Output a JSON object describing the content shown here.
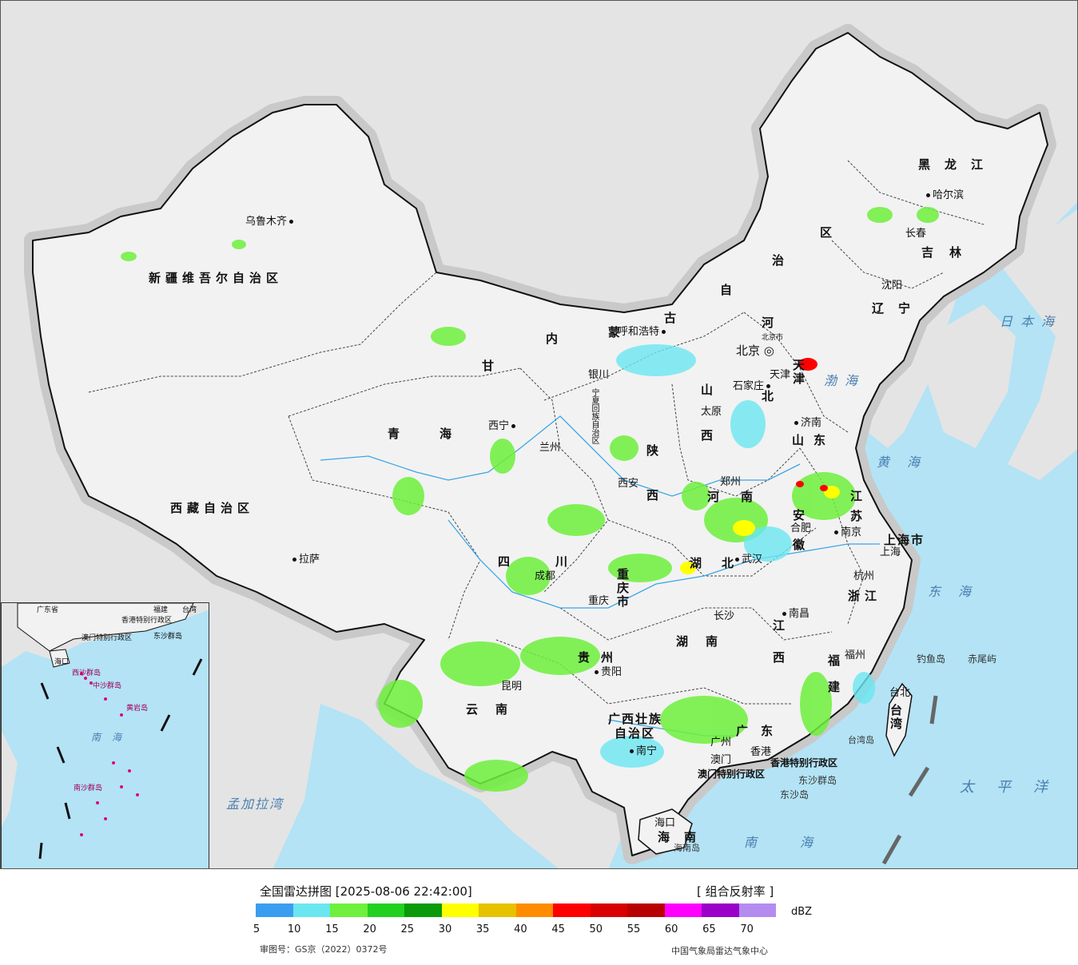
{
  "map": {
    "provinces": [
      {
        "name": "新疆维吾尔自治区"
      },
      {
        "name": "西藏自治区"
      },
      {
        "name": "青海"
      },
      {
        "name": "甘"
      },
      {
        "name": "内"
      },
      {
        "name": "蒙"
      },
      {
        "name": "古"
      },
      {
        "name": "自"
      },
      {
        "name": "治"
      },
      {
        "name": "区"
      },
      {
        "name": "黑龙江"
      },
      {
        "name": "吉林"
      },
      {
        "name": "辽宁"
      },
      {
        "name": "河"
      },
      {
        "name": "北"
      },
      {
        "name": "山"
      },
      {
        "name": "西"
      },
      {
        "name": "山东"
      },
      {
        "name": "河"
      },
      {
        "name": "南"
      },
      {
        "name": "陕"
      },
      {
        "name": "西"
      },
      {
        "name": "四"
      },
      {
        "name": "川"
      },
      {
        "name": "重庆市"
      },
      {
        "name": "湖"
      },
      {
        "name": "北"
      },
      {
        "name": "湖南"
      },
      {
        "name": "江"
      },
      {
        "name": "西"
      },
      {
        "name": "贵州"
      },
      {
        "name": "云南"
      },
      {
        "name": "广西壮族"
      },
      {
        "name": "自治区"
      },
      {
        "name": "广东"
      },
      {
        "name": "福建"
      },
      {
        "name": "浙江"
      },
      {
        "name": "安徽"
      },
      {
        "name": "江苏"
      },
      {
        "name": "上海市"
      },
      {
        "name": "台湾"
      },
      {
        "name": "海南"
      },
      {
        "name": "天津"
      },
      {
        "name": "宁夏回族自治区"
      }
    ],
    "cities": [
      {
        "name": "乌鲁木齐"
      },
      {
        "name": "拉萨"
      },
      {
        "name": "西宁"
      },
      {
        "name": "兰州"
      },
      {
        "name": "银川"
      },
      {
        "name": "呼和浩特"
      },
      {
        "name": "北京"
      },
      {
        "name": "天津"
      },
      {
        "name": "石家庄"
      },
      {
        "name": "太原"
      },
      {
        "name": "济南"
      },
      {
        "name": "郑州"
      },
      {
        "name": "西安"
      },
      {
        "name": "成都"
      },
      {
        "name": "重庆"
      },
      {
        "name": "武汉"
      },
      {
        "name": "合肥"
      },
      {
        "name": "南京"
      },
      {
        "name": "上海"
      },
      {
        "name": "杭州"
      },
      {
        "name": "南昌"
      },
      {
        "name": "长沙"
      },
      {
        "name": "贵阳"
      },
      {
        "name": "昆明"
      },
      {
        "name": "南宁"
      },
      {
        "name": "广州"
      },
      {
        "name": "福州"
      },
      {
        "name": "台北"
      },
      {
        "name": "海口"
      },
      {
        "name": "沈阳"
      },
      {
        "name": "长春"
      },
      {
        "name": "哈尔滨"
      },
      {
        "name": "香港"
      },
      {
        "name": "澳门"
      }
    ],
    "other_labels": [
      {
        "name": "香港特别行政区"
      },
      {
        "name": "澳门特别行政区"
      },
      {
        "name": "东沙群岛"
      },
      {
        "name": "东沙岛"
      },
      {
        "name": "海南岛"
      },
      {
        "name": "台湾岛"
      },
      {
        "name": "钓鱼岛"
      },
      {
        "name": "赤尾屿"
      },
      {
        "name": "北京市"
      }
    ],
    "seas": [
      {
        "name": "日本海"
      },
      {
        "name": "渤海"
      },
      {
        "name": "黄海"
      },
      {
        "name": "东海"
      },
      {
        "name": "太平洋"
      },
      {
        "name": "南海"
      },
      {
        "name": "孟加拉湾"
      }
    ],
    "inset_labels": [
      {
        "name": "广东省"
      },
      {
        "name": "福建"
      },
      {
        "name": "台湾"
      },
      {
        "name": "香港特别行政区"
      },
      {
        "name": "澳门特别行政区"
      },
      {
        "name": "东沙群岛"
      },
      {
        "name": "海口"
      },
      {
        "name": "西沙群岛"
      },
      {
        "name": "中沙群岛"
      },
      {
        "name": "南海"
      },
      {
        "name": "南沙群岛"
      },
      {
        "name": "黄岩岛"
      }
    ]
  },
  "legend": {
    "title": "全国雷达拼图 [2025-08-06 22:42:00]",
    "product": "[ 组合反射率 ]",
    "unit": "dBZ",
    "colors": [
      "#3a9df0",
      "#6ae6f0",
      "#6ef03c",
      "#22d020",
      "#0a9a0a",
      "#ffff00",
      "#e6c200",
      "#ff8c00",
      "#ff0000",
      "#d80000",
      "#b80000",
      "#ff00ff",
      "#9a00c8",
      "#b48cf0"
    ],
    "ticks": [
      "5",
      "10",
      "15",
      "20",
      "25",
      "30",
      "35",
      "40",
      "45",
      "50",
      "55",
      "60",
      "65",
      "70"
    ],
    "approval": "审图号：GS京（2022）0372号",
    "source": "中国气象局雷达气象中心"
  }
}
